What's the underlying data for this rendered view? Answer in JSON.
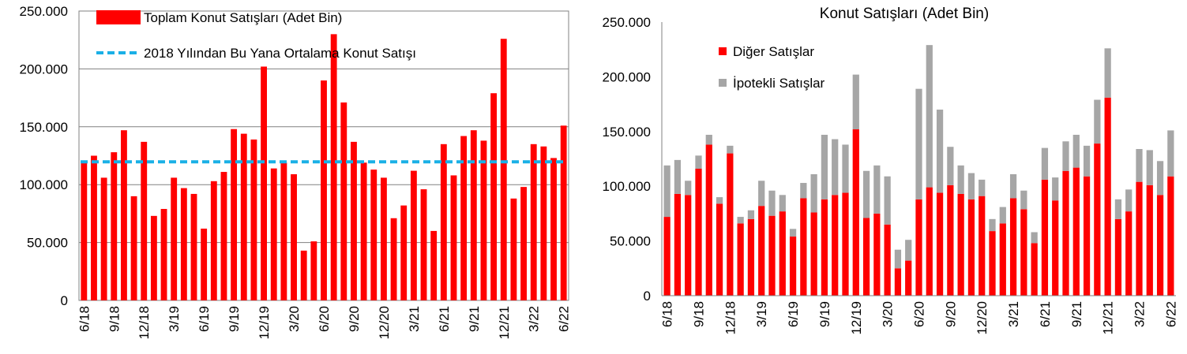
{
  "chart_data": [
    {
      "type": "bar",
      "title": "",
      "xlabel": "",
      "ylabel": "",
      "ylim": [
        0,
        250000
      ],
      "yticks": [
        "0",
        "50.000",
        "100.000",
        "150.000",
        "200.000",
        "250.000"
      ],
      "grid": true,
      "legend_position": "top-left",
      "categories": [
        "6/18",
        "7/18",
        "8/18",
        "9/18",
        "10/18",
        "11/18",
        "12/18",
        "1/19",
        "2/19",
        "3/19",
        "4/19",
        "5/19",
        "6/19",
        "7/19",
        "8/19",
        "9/19",
        "10/19",
        "11/19",
        "12/19",
        "1/20",
        "2/20",
        "3/20",
        "4/20",
        "5/20",
        "6/20",
        "7/20",
        "8/20",
        "9/20",
        "10/20",
        "11/20",
        "12/20",
        "1/21",
        "2/21",
        "3/21",
        "4/21",
        "5/21",
        "6/21",
        "7/21",
        "8/21",
        "9/21",
        "10/21",
        "11/21",
        "12/21",
        "1/22",
        "2/22",
        "3/22",
        "4/22",
        "5/22",
        "6/22"
      ],
      "x_tick_labels": [
        "6/18",
        "9/18",
        "12/18",
        "3/19",
        "6/19",
        "9/19",
        "12/19",
        "3/20",
        "6/20",
        "9/20",
        "12/20",
        "3/21",
        "6/21",
        "9/21",
        "12/21",
        "3/22",
        "6/22"
      ],
      "series": [
        {
          "name": "Toplam Konut Satışları (Adet Bin)",
          "color": "#ff0000",
          "values": [
            120000,
            125000,
            106000,
            128000,
            147000,
            90000,
            137000,
            73000,
            79000,
            106000,
            97000,
            92000,
            62000,
            103000,
            111000,
            148000,
            144000,
            139000,
            202000,
            114000,
            119000,
            109000,
            43000,
            51000,
            190000,
            230000,
            171000,
            137000,
            119000,
            113000,
            106000,
            71000,
            82000,
            112000,
            96000,
            60000,
            135000,
            108000,
            142000,
            147000,
            138000,
            179000,
            226000,
            88000,
            98000,
            135000,
            133000,
            123000,
            151000
          ]
        },
        {
          "name": "2018 Yılından Bu Yana Ortalama Konut Satışı",
          "color": "#1ab0e6",
          "type": "line",
          "style": "dashed",
          "value": 119700
        }
      ]
    },
    {
      "type": "bar",
      "stacked": true,
      "title": "Konut Satışları (Adet Bin)",
      "xlabel": "",
      "ylabel": "",
      "ylim": [
        0,
        250000
      ],
      "yticks": [
        "0",
        "50.000",
        "100.000",
        "150.000",
        "200.000",
        "250.000"
      ],
      "grid": false,
      "legend_position": "top-left",
      "categories": [
        "6/18",
        "7/18",
        "8/18",
        "9/18",
        "10/18",
        "11/18",
        "12/18",
        "1/19",
        "2/19",
        "3/19",
        "4/19",
        "5/19",
        "6/19",
        "7/19",
        "8/19",
        "9/19",
        "10/19",
        "11/19",
        "12/19",
        "1/20",
        "2/20",
        "3/20",
        "4/20",
        "5/20",
        "6/20",
        "7/20",
        "8/20",
        "9/20",
        "10/20",
        "11/20",
        "12/20",
        "1/21",
        "2/21",
        "3/21",
        "4/21",
        "5/21",
        "6/21",
        "7/21",
        "8/21",
        "9/21",
        "10/21",
        "11/21",
        "12/21",
        "1/22",
        "2/22",
        "3/22",
        "4/22",
        "5/22",
        "6/22"
      ],
      "x_tick_labels": [
        "6/18",
        "9/18",
        "12/18",
        "3/19",
        "6/19",
        "9/19",
        "12/19",
        "3/20",
        "6/20",
        "9/20",
        "12/20",
        "3/21",
        "6/21",
        "9/21",
        "12/21",
        "3/22",
        "6/22"
      ],
      "series": [
        {
          "name": "Diğer Satışlar",
          "color": "#ff0000",
          "values": [
            72000,
            93000,
            92000,
            116000,
            138000,
            84000,
            130000,
            66000,
            70000,
            82000,
            73000,
            77000,
            54000,
            89000,
            76000,
            88000,
            92000,
            94000,
            152000,
            71000,
            75000,
            65000,
            25000,
            32000,
            88000,
            99000,
            94000,
            101000,
            93000,
            88000,
            91000,
            59000,
            66000,
            89000,
            79000,
            48000,
            106000,
            87000,
            114000,
            117000,
            109000,
            139000,
            181000,
            70000,
            77000,
            104000,
            101000,
            92000,
            109000
          ]
        },
        {
          "name": "İpotekli Satışlar",
          "color": "#a6a6a6",
          "values": [
            47000,
            31000,
            13000,
            12000,
            9000,
            6000,
            7000,
            6000,
            8000,
            23000,
            23000,
            15000,
            7000,
            14000,
            35000,
            59000,
            51000,
            44000,
            50000,
            43000,
            44000,
            44000,
            17000,
            19000,
            101000,
            130000,
            76000,
            35000,
            26000,
            24000,
            15000,
            11000,
            15000,
            22000,
            17000,
            10000,
            29000,
            21000,
            27000,
            30000,
            28000,
            40000,
            45000,
            18000,
            20000,
            30000,
            32000,
            31000,
            42000
          ]
        }
      ]
    }
  ]
}
